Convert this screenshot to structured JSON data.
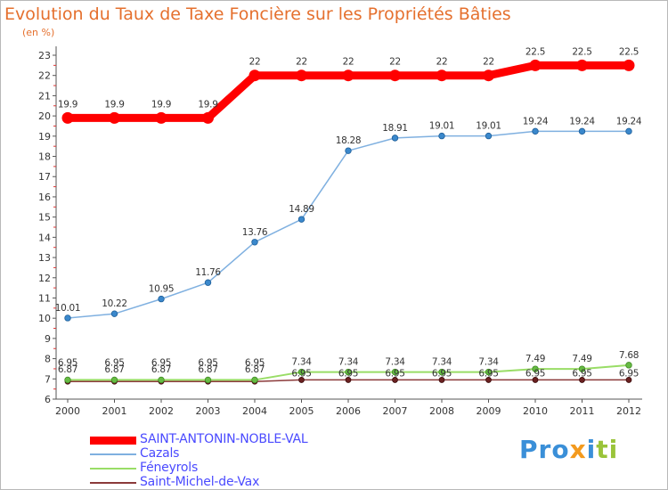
{
  "header": {
    "title": "Evolution du Taux de Taxe Foncière sur les Propriétés Bâties",
    "subtitle": "(en %)"
  },
  "logo": {
    "text": "Proxiti",
    "colors": [
      "#3a8fd8",
      "#f39a1e",
      "#9ac43a"
    ]
  },
  "chart_data": {
    "type": "line",
    "title": "Evolution du Taux de Taxe Foncière sur les Propriétés Bâties",
    "ylabel": "(en %)",
    "xlabel": "",
    "x": [
      "2000",
      "2001",
      "2002",
      "2003",
      "2004",
      "2005",
      "2006",
      "2007",
      "2008",
      "2009",
      "2010",
      "2011",
      "2012"
    ],
    "ylim": [
      6,
      23
    ],
    "yticks": [
      "6",
      "7",
      "8",
      "9",
      "10",
      "11",
      "12",
      "13",
      "14",
      "15",
      "16",
      "17",
      "18",
      "19",
      "20",
      "21",
      "22",
      "23"
    ],
    "grid": false,
    "legend_position": "bottom-left",
    "series": [
      {
        "name": "SAINT-ANTONIN-NOBLE-VAL",
        "color": "#ff0000",
        "width": 9,
        "values": [
          19.9,
          19.9,
          19.9,
          19.9,
          22,
          22,
          22,
          22,
          22,
          22,
          22.5,
          22.5,
          22.5
        ],
        "labels": [
          "19.9",
          "19.9",
          "19.9",
          "19.9",
          "22",
          "22",
          "22",
          "22",
          "22",
          "22",
          "22.5",
          "22.5",
          "22.5"
        ]
      },
      {
        "name": "Cazals",
        "color": "#7fb0e0",
        "width": 1.5,
        "values": [
          10.01,
          10.22,
          10.95,
          11.76,
          13.76,
          14.89,
          18.28,
          18.91,
          19.01,
          19.01,
          19.24,
          19.24,
          19.24
        ],
        "labels": [
          "10.01",
          "10.22",
          "10.95",
          "11.76",
          "13.76",
          "14.89",
          "18.28",
          "18.91",
          "19.01",
          "19.01",
          "19.24",
          "19.24",
          "19.24"
        ]
      },
      {
        "name": "Féneyrols",
        "color": "#99dd66",
        "width": 2,
        "values": [
          6.95,
          6.95,
          6.95,
          6.95,
          6.95,
          7.34,
          7.34,
          7.34,
          7.34,
          7.34,
          7.49,
          7.49,
          7.68
        ],
        "labels": [
          "6.95",
          "6.95",
          "6.95",
          "6.95",
          "6.95",
          "7.34",
          "7.34",
          "7.34",
          "7.34",
          "7.34",
          "7.49",
          "7.49",
          "7.68"
        ]
      },
      {
        "name": "Saint-Michel-de-Vax",
        "color": "#8b3a3a",
        "width": 1.5,
        "values": [
          6.87,
          6.87,
          6.87,
          6.87,
          6.87,
          6.95,
          6.95,
          6.95,
          6.95,
          6.95,
          6.95,
          6.95,
          6.95
        ],
        "labels": [
          "6.87",
          "6.87",
          "6.87",
          "6.87",
          "6.87",
          "6.95",
          "6.95",
          "6.95",
          "6.95",
          "6.95",
          "6.95",
          "6.95",
          "6.95"
        ]
      }
    ]
  }
}
